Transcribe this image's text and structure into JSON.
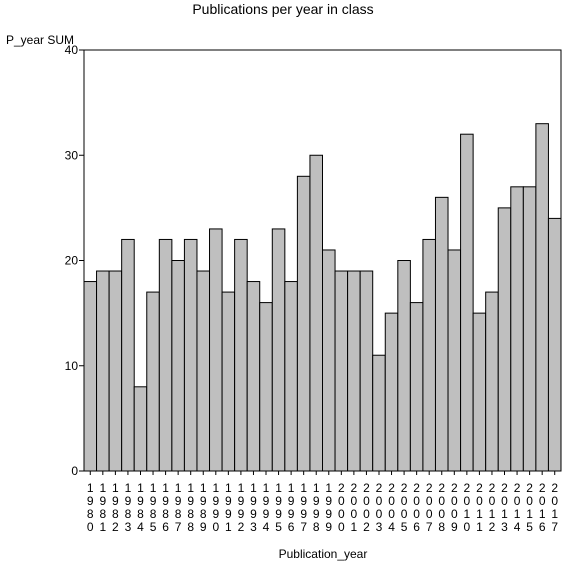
{
  "chart_data": {
    "type": "bar",
    "title": "Publications per year in class",
    "xlabel": "Publication_year",
    "ylabel": "P_year SUM",
    "ylim": [
      0,
      40
    ],
    "yticks": [
      0,
      10,
      20,
      30,
      40
    ],
    "grid": false,
    "categories": [
      "1980",
      "1981",
      "1982",
      "1983",
      "1984",
      "1985",
      "1986",
      "1987",
      "1988",
      "1989",
      "1990",
      "1991",
      "1992",
      "1993",
      "1994",
      "1995",
      "1996",
      "1997",
      "1998",
      "1999",
      "2000",
      "2001",
      "2002",
      "2003",
      "2004",
      "2005",
      "2006",
      "2007",
      "2008",
      "2009",
      "2010",
      "2011",
      "2012",
      "2013",
      "2014",
      "2015",
      "2016",
      "2017"
    ],
    "values": [
      18,
      19,
      19,
      22,
      8,
      17,
      22,
      20,
      22,
      19,
      23,
      17,
      22,
      18,
      16,
      23,
      18,
      28,
      30,
      21,
      19,
      19,
      19,
      11,
      15,
      20,
      16,
      22,
      26,
      21,
      32,
      15,
      17,
      25,
      27,
      27,
      33,
      24
    ],
    "colors": {
      "bar_fill": "#bfbfbf",
      "bar_stroke": "#000000"
    }
  }
}
